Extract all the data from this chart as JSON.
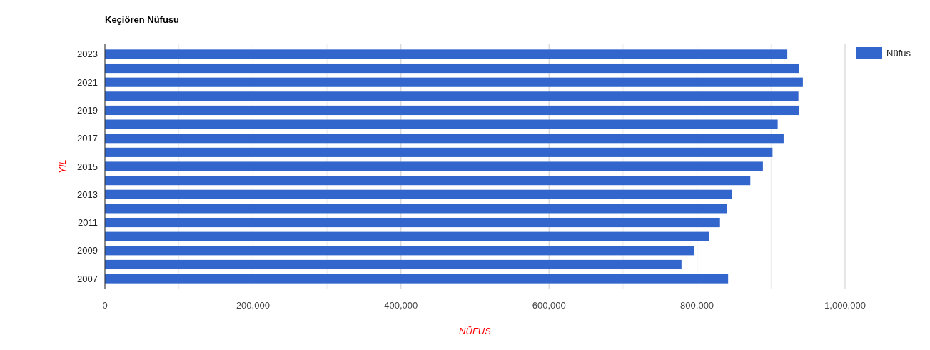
{
  "chart_data": {
    "type": "bar",
    "orientation": "horizontal",
    "title": "Keçiören Nüfusu",
    "xlabel": "NÜFUS",
    "ylabel": "YIL",
    "categories": [
      "2023",
      null,
      "2021",
      null,
      "2019",
      null,
      "2017",
      null,
      "2015",
      null,
      "2013",
      null,
      "2011",
      null,
      "2009",
      null,
      "2007"
    ],
    "series": [
      {
        "name": "Nüfus",
        "color": "#3366cc",
        "values": [
          922000,
          938000,
          943000,
          937000,
          938000,
          909000,
          917000,
          902000,
          889000,
          872000,
          847000,
          840000,
          831000,
          816000,
          796000,
          779000,
          842000
        ]
      }
    ],
    "xlim": [
      0,
      1000000
    ],
    "xticks": [
      0,
      {
        "value": 100000,
        "label": null
      },
      {
        "value": 200000,
        "label": "200,000"
      },
      {
        "value": 300000,
        "label": null
      },
      {
        "value": 400000,
        "label": "400,000"
      },
      {
        "value": 500000,
        "label": null
      },
      {
        "value": 600000,
        "label": "600,000"
      },
      {
        "value": 700000,
        "label": null
      },
      {
        "value": 800000,
        "label": "800,000"
      },
      {
        "value": 900000,
        "label": null
      },
      {
        "value": 1000000,
        "label": "1,000,000"
      }
    ],
    "grid": true,
    "legend": "top right"
  }
}
